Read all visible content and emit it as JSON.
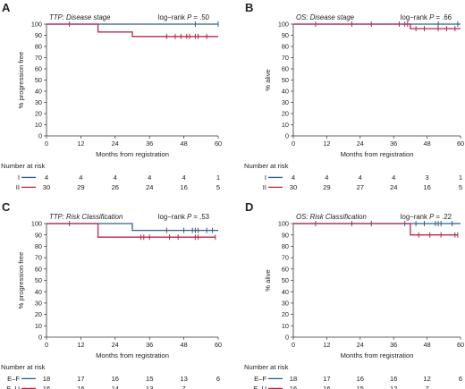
{
  "colors": {
    "series1": "#2f5f8f",
    "series2": "#b8274a",
    "axis": "#333333",
    "text": "#222222"
  },
  "chart_data": [
    {
      "panel": "A",
      "type": "line",
      "title": "TTP: Disease stage",
      "pvalue": "log−rank P = .50",
      "pvalue_prefix": "log−rank ",
      "pvalue_p": "P",
      "pvalue_suffix": " = .50",
      "xlabel": "Months from registration",
      "ylabel": "% progression free",
      "xlim": [
        0,
        60
      ],
      "ylim": [
        0,
        100
      ],
      "xticks": [
        "0",
        "12",
        "24",
        "36",
        "48",
        "60"
      ],
      "yticks": [
        "0",
        "10",
        "20",
        "30",
        "40",
        "50",
        "60",
        "70",
        "80",
        "90",
        "100"
      ],
      "risk_label": "Number at risk",
      "risk_times": [
        0,
        12,
        24,
        36,
        48,
        60
      ],
      "series": [
        {
          "name": "I",
          "color": "#2f5f8f",
          "steps": [
            [
              0,
              100
            ],
            [
              60,
              100
            ]
          ],
          "censors": [
            [
              52,
              100
            ],
            [
              60,
              100
            ]
          ],
          "risk": [
            "4",
            "4",
            "4",
            "4",
            "4",
            "1"
          ]
        },
        {
          "name": "II",
          "color": "#b8274a",
          "steps": [
            [
              0,
              100
            ],
            [
              18,
              100
            ],
            [
              18,
              93
            ],
            [
              30,
              93
            ],
            [
              30,
              89
            ],
            [
              60,
              89
            ]
          ],
          "censors": [
            [
              8,
              100
            ],
            [
              42,
              89
            ],
            [
              45,
              89
            ],
            [
              47,
              89
            ],
            [
              49,
              89
            ],
            [
              50,
              89
            ],
            [
              52,
              89
            ],
            [
              53,
              89
            ],
            [
              56,
              89
            ]
          ],
          "risk": [
            "30",
            "29",
            "26",
            "24",
            "16",
            "5"
          ]
        }
      ]
    },
    {
      "panel": "B",
      "type": "line",
      "title": "OS: Disease stage",
      "pvalue": "log−rank P = .66",
      "pvalue_prefix": "log−rank ",
      "pvalue_p": "P",
      "pvalue_suffix": " = .66",
      "xlabel": "Months from registration",
      "ylabel": "% alive",
      "xlim": [
        0,
        60
      ],
      "ylim": [
        0,
        100
      ],
      "xticks": [
        "0",
        "12",
        "24",
        "36",
        "48",
        "60"
      ],
      "yticks": [
        "0",
        "10",
        "20",
        "30",
        "40",
        "50",
        "60",
        "70",
        "80",
        "90",
        "100"
      ],
      "risk_label": "Number at risk",
      "risk_times": [
        0,
        12,
        24,
        36,
        48,
        60
      ],
      "series": [
        {
          "name": "I",
          "color": "#2f5f8f",
          "steps": [
            [
              0,
              100
            ],
            [
              60,
              100
            ]
          ],
          "censors": [
            [
              40,
              100
            ],
            [
              52,
              100
            ],
            [
              59,
              100
            ]
          ],
          "risk": [
            "4",
            "4",
            "4",
            "4",
            "3",
            "1"
          ]
        },
        {
          "name": "II",
          "color": "#b8274a",
          "steps": [
            [
              0,
              100
            ],
            [
              42,
              100
            ],
            [
              42,
              96
            ],
            [
              60,
              96
            ]
          ],
          "censors": [
            [
              8,
              100
            ],
            [
              21,
              100
            ],
            [
              28,
              100
            ],
            [
              38,
              100
            ],
            [
              41,
              100
            ],
            [
              44,
              96
            ],
            [
              47,
              96
            ],
            [
              52,
              96
            ],
            [
              55,
              96
            ],
            [
              58,
              96
            ]
          ],
          "risk": [
            "30",
            "29",
            "27",
            "24",
            "16",
            "5"
          ]
        }
      ]
    },
    {
      "panel": "C",
      "type": "line",
      "title": "TTP: Risk Classification",
      "pvalue": "log−rank P = .53",
      "pvalue_prefix": "log−rank ",
      "pvalue_p": "P",
      "pvalue_suffix": " = .53",
      "xlabel": "Months from registration",
      "ylabel": "% progression free",
      "xlim": [
        0,
        60
      ],
      "ylim": [
        0,
        100
      ],
      "xticks": [
        "0",
        "12",
        "24",
        "36",
        "48",
        "60"
      ],
      "yticks": [
        "0",
        "10",
        "20",
        "30",
        "40",
        "50",
        "60",
        "70",
        "80",
        "90",
        "100"
      ],
      "risk_label": "Number at risk",
      "risk_times": [
        0,
        12,
        24,
        36,
        48,
        60
      ],
      "series": [
        {
          "name": "E–F",
          "color": "#2f5f8f",
          "steps": [
            [
              0,
              100
            ],
            [
              30,
              100
            ],
            [
              30,
              94
            ],
            [
              60,
              94
            ]
          ],
          "censors": [
            [
              42,
              94
            ],
            [
              48,
              94
            ],
            [
              51,
              94
            ],
            [
              52,
              94
            ],
            [
              53,
              94
            ],
            [
              56,
              94
            ],
            [
              58,
              94
            ]
          ],
          "risk": [
            "18",
            "17",
            "16",
            "15",
            "13",
            "6"
          ]
        },
        {
          "name": "E–U",
          "color": "#b8274a",
          "steps": [
            [
              0,
              100
            ],
            [
              18,
              100
            ],
            [
              18,
              88
            ],
            [
              59,
              88
            ]
          ],
          "censors": [
            [
              8,
              100
            ],
            [
              33,
              88
            ],
            [
              34,
              88
            ],
            [
              36,
              88
            ],
            [
              43,
              88
            ],
            [
              46,
              88
            ],
            [
              52,
              88
            ],
            [
              53,
              88
            ],
            [
              59,
              88
            ]
          ],
          "risk": [
            "16",
            "16",
            "14",
            "13",
            "7",
            ""
          ]
        }
      ]
    },
    {
      "panel": "D",
      "type": "line",
      "title": "OS: Risk Classification",
      "pvalue": "log−rank P = .22",
      "pvalue_prefix": "log−rank ",
      "pvalue_p": "P",
      "pvalue_suffix": " = .22",
      "xlabel": "Months from registration",
      "ylabel": "% alive",
      "xlim": [
        0,
        60
      ],
      "ylim": [
        0,
        100
      ],
      "xticks": [
        "0",
        "12",
        "24",
        "36",
        "48",
        "60"
      ],
      "yticks": [
        "0",
        "10",
        "20",
        "30",
        "40",
        "50",
        "60",
        "70",
        "80",
        "90",
        "100"
      ],
      "risk_label": "Number at risk",
      "risk_times": [
        0,
        12,
        24,
        36,
        48,
        60
      ],
      "series": [
        {
          "name": "E–F",
          "color": "#2f5f8f",
          "steps": [
            [
              0,
              100
            ],
            [
              60,
              100
            ]
          ],
          "censors": [
            [
              21,
              100
            ],
            [
              28,
              100
            ],
            [
              40,
              100
            ],
            [
              44,
              100
            ],
            [
              47,
              100
            ],
            [
              51,
              100
            ],
            [
              52,
              100
            ],
            [
              53,
              100
            ],
            [
              57,
              100
            ]
          ],
          "risk": [
            "18",
            "17",
            "16",
            "16",
            "12",
            "6"
          ]
        },
        {
          "name": "E–U",
          "color": "#b8274a",
          "steps": [
            [
              0,
              100
            ],
            [
              42,
              100
            ],
            [
              42,
              90
            ],
            [
              59,
              90
            ]
          ],
          "censors": [
            [
              8,
              100
            ],
            [
              45,
              90
            ],
            [
              49,
              90
            ],
            [
              53,
              90
            ],
            [
              58,
              90
            ],
            [
              59,
              90
            ]
          ],
          "risk": [
            "16",
            "16",
            "15",
            "12",
            "7",
            ""
          ]
        }
      ]
    }
  ]
}
